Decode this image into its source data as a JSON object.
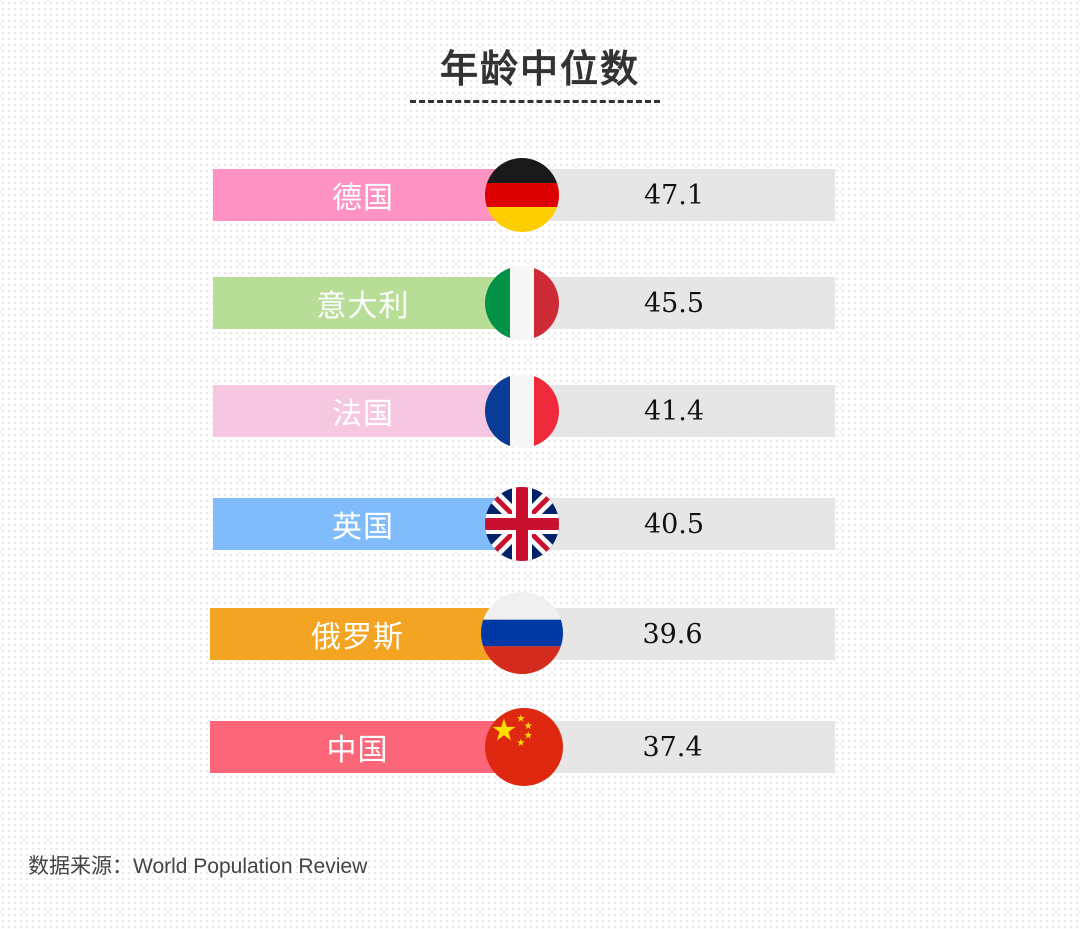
{
  "title": "年龄中位数",
  "source": "数据来源：World Population Review",
  "colors": {
    "de": "#fd92c3",
    "it": "#b8dd97",
    "fr": "#f6c7e1",
    "uk": "#80bcfb",
    "ru": "#f4a423",
    "cn": "#fc6679",
    "value_bar": "#e6e6e6"
  },
  "chart_data": {
    "type": "table",
    "title": "年龄中位数",
    "categories": [
      "德国",
      "意大利",
      "法国",
      "英国",
      "俄罗斯",
      "中国"
    ],
    "values": [
      47.1,
      45.5,
      41.4,
      40.5,
      39.6,
      37.4
    ],
    "rows": [
      {
        "country": "德国",
        "value": "47.1",
        "flag": "germany-flag-icon"
      },
      {
        "country": "意大利",
        "value": "45.5",
        "flag": "italy-flag-icon"
      },
      {
        "country": "法国",
        "value": "41.4",
        "flag": "france-flag-icon"
      },
      {
        "country": "英国",
        "value": "40.5",
        "flag": "uk-flag-icon"
      },
      {
        "country": "俄罗斯",
        "value": "39.6",
        "flag": "russia-flag-icon"
      },
      {
        "country": "中国",
        "value": "37.4",
        "flag": "china-flag-icon"
      }
    ]
  }
}
